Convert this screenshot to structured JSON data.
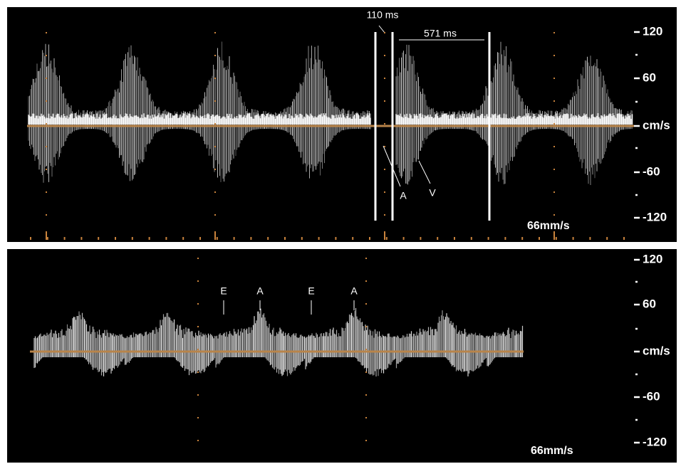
{
  "top_panel": {
    "scale_labels": [
      "120",
      "60",
      "cm/s",
      "-60",
      "-120"
    ],
    "measurements": [
      "110 ms",
      "571 ms"
    ],
    "waveform_labels": [
      "A",
      "V"
    ],
    "sweep_speed": "66mm/s"
  },
  "bottom_panel": {
    "scale_labels": [
      "120",
      "60",
      "cm/s",
      "-60",
      "-120"
    ],
    "waveform_labels": [
      "E",
      "A",
      "E",
      "A"
    ],
    "sweep_speed": "66mm/s"
  }
}
